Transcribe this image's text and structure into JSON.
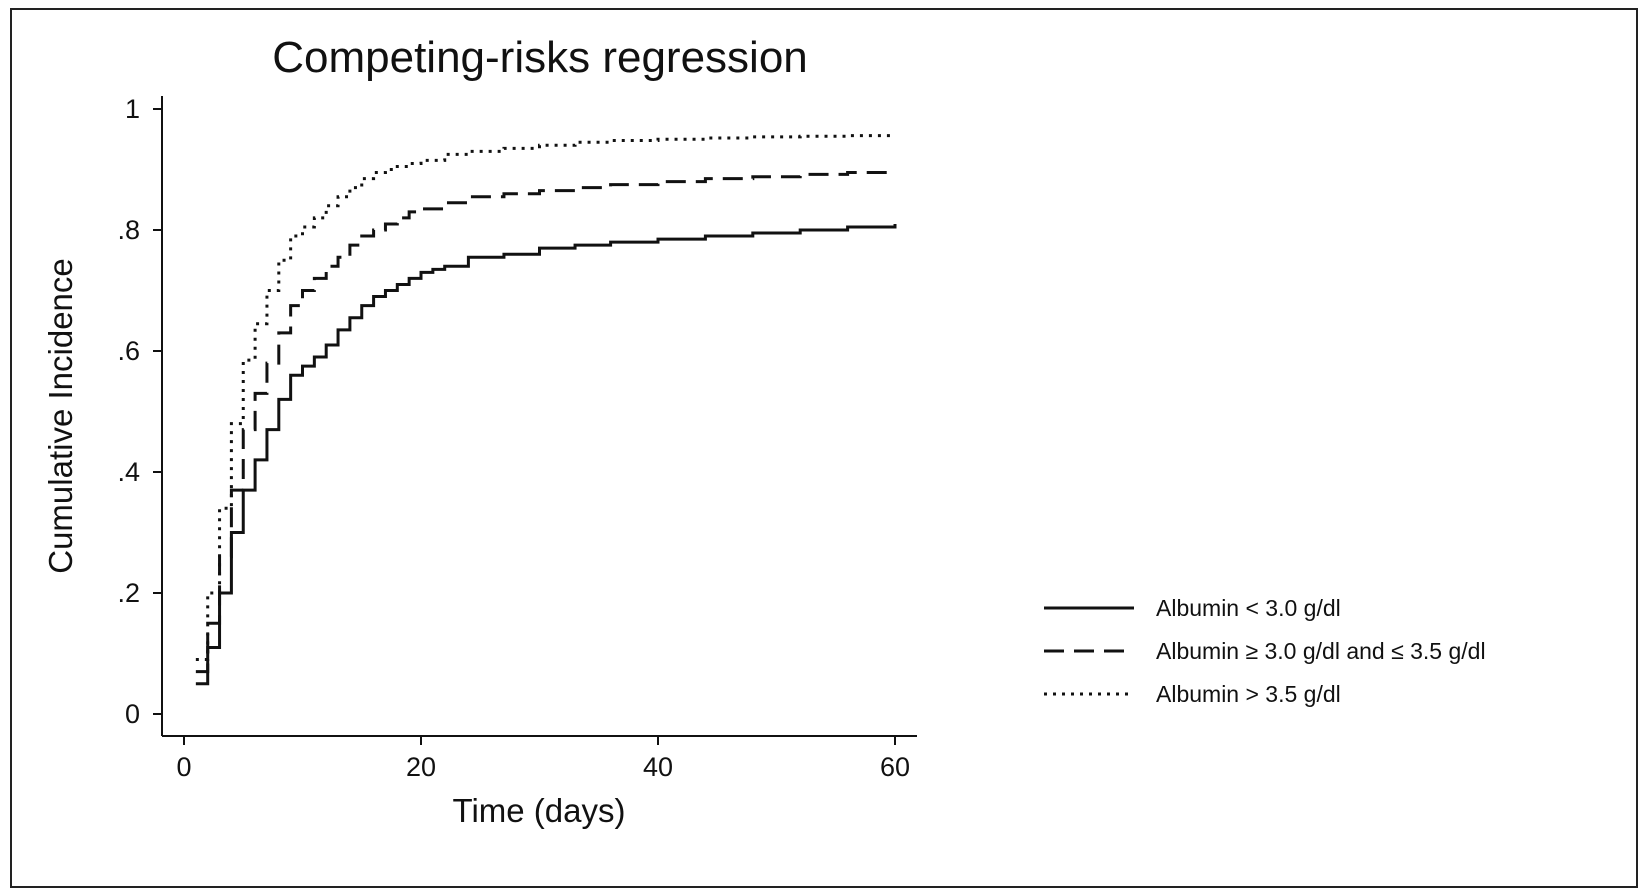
{
  "chart_data": {
    "type": "line",
    "title": "Competing-risks regression",
    "xlabel": "Time (days)",
    "ylabel": "Cumulative Incidence",
    "xlim": [
      0,
      60
    ],
    "ylim": [
      0,
      1
    ],
    "x_ticks": [
      0,
      20,
      40,
      60
    ],
    "x_tick_labels": [
      "0",
      "20",
      "40",
      "60"
    ],
    "y_ticks": [
      0,
      0.2,
      0.4,
      0.6,
      0.8,
      1
    ],
    "y_tick_labels": [
      "0",
      ".2",
      ".4",
      ".6",
      ".8",
      "1"
    ],
    "grid": false,
    "step": true,
    "legend_position": "right",
    "series": [
      {
        "name": "Albumin < 3.0 g/dl",
        "line_style": "solid",
        "x": [
          1,
          2,
          3,
          4,
          5,
          6,
          7,
          8,
          9,
          10,
          11,
          12,
          13,
          14,
          15,
          16,
          17,
          18,
          19,
          20,
          21,
          22,
          24,
          27,
          30,
          33,
          36,
          40,
          44,
          48,
          52,
          56,
          60
        ],
        "y": [
          0.05,
          0.11,
          0.2,
          0.3,
          0.37,
          0.42,
          0.47,
          0.52,
          0.56,
          0.575,
          0.59,
          0.61,
          0.635,
          0.655,
          0.675,
          0.69,
          0.7,
          0.71,
          0.72,
          0.73,
          0.735,
          0.74,
          0.755,
          0.76,
          0.77,
          0.775,
          0.78,
          0.785,
          0.79,
          0.795,
          0.8,
          0.805,
          0.81
        ]
      },
      {
        "name": "Albumin ≥ 3.0 g/dl and ≤ 3.5 g/dl",
        "line_style": "dashed",
        "x": [
          1,
          2,
          3,
          4,
          5,
          6,
          7,
          8,
          9,
          10,
          11,
          12,
          13,
          14,
          15,
          16,
          17,
          18,
          19,
          20,
          22,
          24,
          27,
          30,
          33,
          36,
          40,
          44,
          48,
          52,
          56,
          60
        ],
        "y": [
          0.07,
          0.15,
          0.26,
          0.37,
          0.47,
          0.53,
          0.58,
          0.63,
          0.675,
          0.7,
          0.72,
          0.74,
          0.755,
          0.775,
          0.79,
          0.8,
          0.81,
          0.82,
          0.83,
          0.835,
          0.845,
          0.855,
          0.86,
          0.865,
          0.87,
          0.875,
          0.88,
          0.885,
          0.888,
          0.892,
          0.895,
          0.898
        ]
      },
      {
        "name": "Albumin > 3.5 g/dl",
        "line_style": "dotted",
        "x": [
          1,
          2,
          3,
          4,
          5,
          6,
          7,
          8,
          9,
          10,
          11,
          12,
          13,
          14,
          15,
          16,
          17,
          18,
          19,
          20,
          22,
          24,
          27,
          30,
          33,
          36,
          40,
          44,
          48,
          52,
          56,
          60
        ],
        "y": [
          0.09,
          0.2,
          0.34,
          0.48,
          0.585,
          0.645,
          0.7,
          0.75,
          0.79,
          0.805,
          0.82,
          0.84,
          0.855,
          0.87,
          0.885,
          0.895,
          0.9,
          0.905,
          0.91,
          0.915,
          0.925,
          0.93,
          0.935,
          0.94,
          0.945,
          0.948,
          0.95,
          0.952,
          0.954,
          0.955,
          0.956,
          0.957
        ]
      }
    ]
  }
}
